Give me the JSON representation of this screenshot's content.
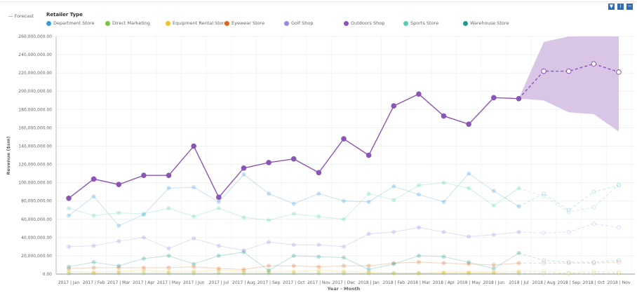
{
  "toolbar": {
    "icons": [
      "filter-icon",
      "info-icon",
      "chart-icon"
    ]
  },
  "legend": {
    "forecast_label": "Forecast",
    "title": "Retailer Type",
    "items": [
      {
        "name": "Department Store",
        "color": "#3a9ad9"
      },
      {
        "name": "Direct Marketing",
        "color": "#7dc142"
      },
      {
        "name": "Equipment Rental Store",
        "color": "#f2c12e"
      },
      {
        "name": "Eyewear Store",
        "color": "#d9661f"
      },
      {
        "name": "Golf Shop",
        "color": "#9b87e0"
      },
      {
        "name": "Outdoors Shop",
        "color": "#8a55b5"
      },
      {
        "name": "Sports Store",
        "color": "#4fd1b0"
      },
      {
        "name": "Warehouse Store",
        "color": "#1f9a8a"
      }
    ]
  },
  "chart_data": {
    "type": "line",
    "xlabel": "Year - Month",
    "ylabel": "Revenue ($sm)",
    "ylim": [
      0,
      260000000
    ],
    "yticks": [
      "0.00",
      "20,000,000.00",
      "40,000,000.00",
      "60,000,000.00",
      "80,000,000.00",
      "100,000,000.00",
      "120,000,000.00",
      "140,000,000.00",
      "160,000,000.00",
      "180,000,000.00",
      "200,000,000.00",
      "220,000,000.00",
      "240,000,000.00",
      "260,000,000.00"
    ],
    "grid": true,
    "legend_placement": "top",
    "categories": [
      "2017 | Jan",
      "2017 | Feb",
      "2017 | Mar",
      "2017 | Apr",
      "2017 | May",
      "2017 | Jun",
      "2017 | Jul",
      "2017 | Aug",
      "2017 | Sep",
      "2017 | Oct",
      "2017 | Nov",
      "2017 | Dec",
      "2018 | Jan",
      "2018 | Feb",
      "2018 | Mar",
      "2018 | Apr",
      "2018 | May",
      "2018 | Jun",
      "2018 | Jul",
      "2018 | Aug",
      "2018 | Sep",
      "2018 | Oct",
      "2018 | Nov"
    ],
    "forecast_start_index": 18,
    "highlighted_series": "Outdoors Shop",
    "series": [
      {
        "name": "Department Store",
        "values": [
          64,
          85,
          53,
          65,
          94,
          95,
          79,
          109,
          88,
          77,
          88,
          80,
          79,
          96,
          87,
          79,
          110,
          91,
          74,
          88,
          70,
          90,
          97
        ]
      },
      {
        "name": "Direct Marketing",
        "values": [
          1,
          1,
          1,
          1,
          1,
          1,
          1,
          1,
          1,
          1,
          1,
          1,
          1,
          1,
          1,
          1,
          1,
          1,
          1,
          1,
          1,
          1,
          1
        ]
      },
      {
        "name": "Equipment Rental Store",
        "values": [
          3,
          2,
          3,
          4,
          3,
          3,
          4,
          3,
          3,
          3,
          4,
          3,
          2,
          1,
          1,
          2,
          2,
          2,
          3,
          3,
          1,
          3,
          2
        ]
      },
      {
        "name": "Eyewear Store",
        "values": [
          6,
          7,
          7,
          7,
          7,
          8,
          6,
          5,
          9,
          9,
          8,
          9,
          9,
          12,
          13,
          12,
          11,
          10,
          12,
          12,
          12,
          12,
          13
        ]
      },
      {
        "name": "Golf Shop",
        "values": [
          30,
          31,
          36,
          40,
          28,
          39,
          31,
          26,
          35,
          32,
          32,
          30,
          44,
          46,
          51,
          46,
          41,
          43,
          46,
          45,
          46,
          55,
          51
        ]
      },
      {
        "name": "Outdoors Shop",
        "values": [
          83,
          104,
          98,
          108,
          108,
          140,
          84,
          116,
          122,
          126,
          111,
          148,
          130,
          184,
          197,
          173,
          164,
          193,
          192,
          222,
          222,
          230,
          221
        ]
      },
      {
        "name": "Sports Store",
        "values": [
          72,
          64,
          67,
          66,
          72,
          63,
          72,
          62,
          59,
          66,
          63,
          60,
          88,
          81,
          97,
          100,
          94,
          75,
          94,
          85,
          68,
          73,
          98
        ]
      },
      {
        "name": "Warehouse Store",
        "values": [
          8,
          13,
          9,
          17,
          20,
          11,
          20,
          24,
          4,
          20,
          19,
          18,
          5,
          11,
          20,
          19,
          13,
          6,
          23,
          15,
          13,
          13,
          15
        ]
      }
    ],
    "value_unit_multiplier": 1000000,
    "forecast_band": {
      "series": "Outdoors Shop",
      "upper": [
        192,
        254,
        260,
        260,
        260
      ],
      "lower": [
        192,
        190,
        177,
        175,
        156
      ]
    }
  }
}
